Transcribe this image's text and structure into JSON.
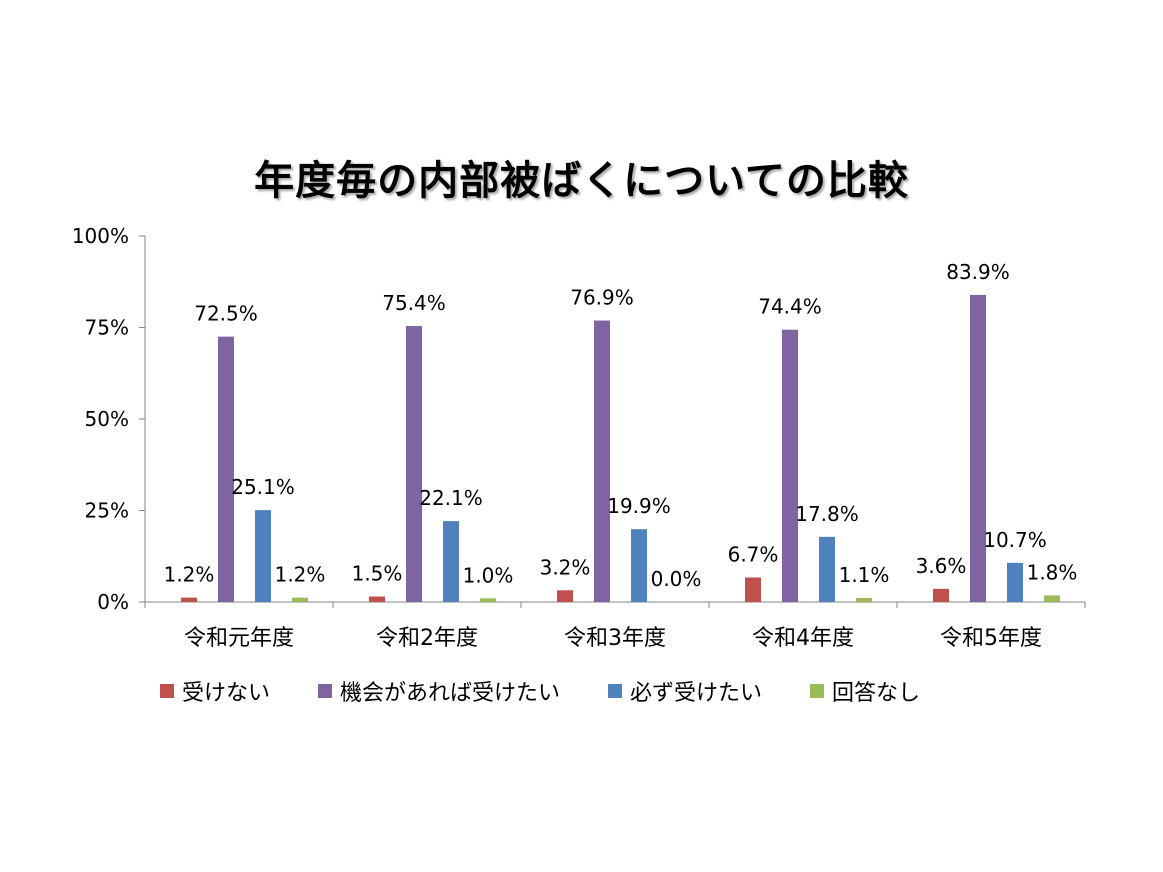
{
  "chart_data": {
    "type": "bar",
    "title": "年度毎の内部被ばくについての比較",
    "xlabel": "",
    "ylabel": "",
    "ylim": [
      0,
      100
    ],
    "y_ticks": [
      "0%",
      "25%",
      "50%",
      "75%",
      "100%"
    ],
    "y_tick_values": [
      0,
      25,
      50,
      75,
      100
    ],
    "grid": false,
    "legend_position": "bottom",
    "categories": [
      "令和元年度",
      "令和2年度",
      "令和3年度",
      "令和4年度",
      "令和5年度"
    ],
    "series": [
      {
        "name": "受けない",
        "color": "#c0504d",
        "values": [
          1.2,
          1.5,
          3.2,
          6.7,
          3.6
        ],
        "labels": [
          "1.2%",
          "1.5%",
          "3.2%",
          "6.7%",
          "3.6%"
        ]
      },
      {
        "name": "機会があれば受けたい",
        "color": "#8064a2",
        "values": [
          72.5,
          75.4,
          76.9,
          74.4,
          83.9
        ],
        "labels": [
          "72.5%",
          "75.4%",
          "76.9%",
          "74.4%",
          "83.9%"
        ]
      },
      {
        "name": "必ず受けたい",
        "color": "#4f81bd",
        "values": [
          25.1,
          22.1,
          19.9,
          17.8,
          10.7
        ],
        "labels": [
          "25.1%",
          "22.1%",
          "19.9%",
          "17.8%",
          "10.7%"
        ]
      },
      {
        "name": "回答なし",
        "color": "#9bbb59",
        "values": [
          1.2,
          1.0,
          0.0,
          1.1,
          1.8
        ],
        "labels": [
          "1.2%",
          "1.0%",
          "0.0%",
          "1.1%",
          "1.8%"
        ]
      }
    ]
  }
}
